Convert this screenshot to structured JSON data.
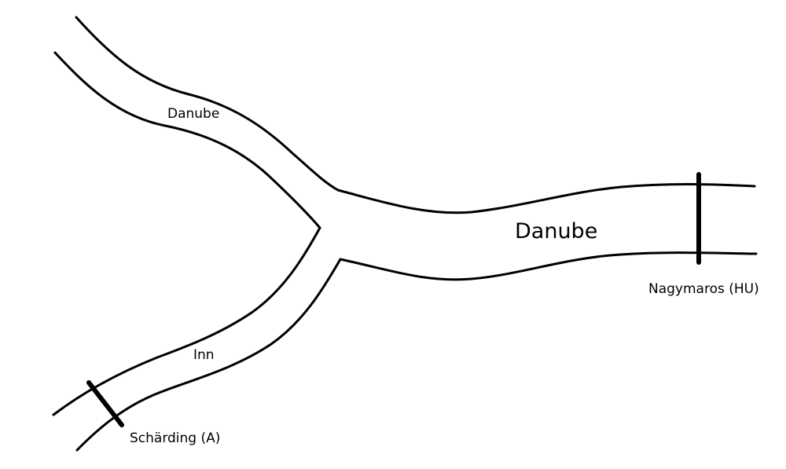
{
  "rivers": {
    "upper_danube": "Danube",
    "main_danube": "Danube",
    "inn": "Inn"
  },
  "stations": {
    "schaerding": "Schärding (A)",
    "nagymaros": "Nagymaros (HU)"
  },
  "colors": {
    "line": "#000000",
    "background": "#ffffff"
  }
}
